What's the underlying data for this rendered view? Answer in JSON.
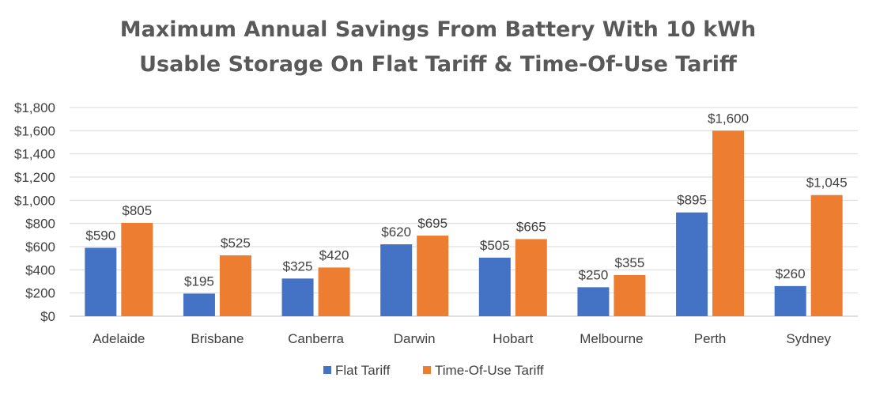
{
  "chart_data": {
    "type": "bar",
    "title_lines": [
      "Maximum Annual Savings From Battery With 10 kWh",
      "Usable Storage On Flat Tariff & Time-Of-Use Tariff"
    ],
    "categories": [
      "Adelaide",
      "Brisbane",
      "Canberra",
      "Darwin",
      "Hobart",
      "Melbourne",
      "Perth",
      "Sydney"
    ],
    "series": [
      {
        "name": "Flat Tariff",
        "values": [
          590,
          195,
          325,
          620,
          505,
          250,
          895,
          260
        ],
        "color": "#4472C4",
        "labels": [
          "$590",
          "$195",
          "$325",
          "$620",
          "$505",
          "$250",
          "$895",
          "$260"
        ]
      },
      {
        "name": "Time-Of-Use Tariff",
        "values": [
          805,
          525,
          420,
          695,
          665,
          355,
          1600,
          1045
        ],
        "color": "#ED7D31",
        "labels": [
          "$805",
          "$525",
          "$420",
          "$695",
          "$665",
          "$355",
          "$1,600",
          "$1,045"
        ]
      }
    ],
    "ylim": [
      0,
      1800
    ],
    "yticks": [
      0,
      200,
      400,
      600,
      800,
      1000,
      1200,
      1400,
      1600,
      1800
    ],
    "ytick_labels": [
      "$0",
      "$200",
      "$400",
      "$600",
      "$800",
      "$1,000",
      "$1,200",
      "$1,400",
      "$1,600",
      "$1,800"
    ],
    "xlabel": "",
    "ylabel": "",
    "grid": true,
    "legend_position": "bottom"
  }
}
